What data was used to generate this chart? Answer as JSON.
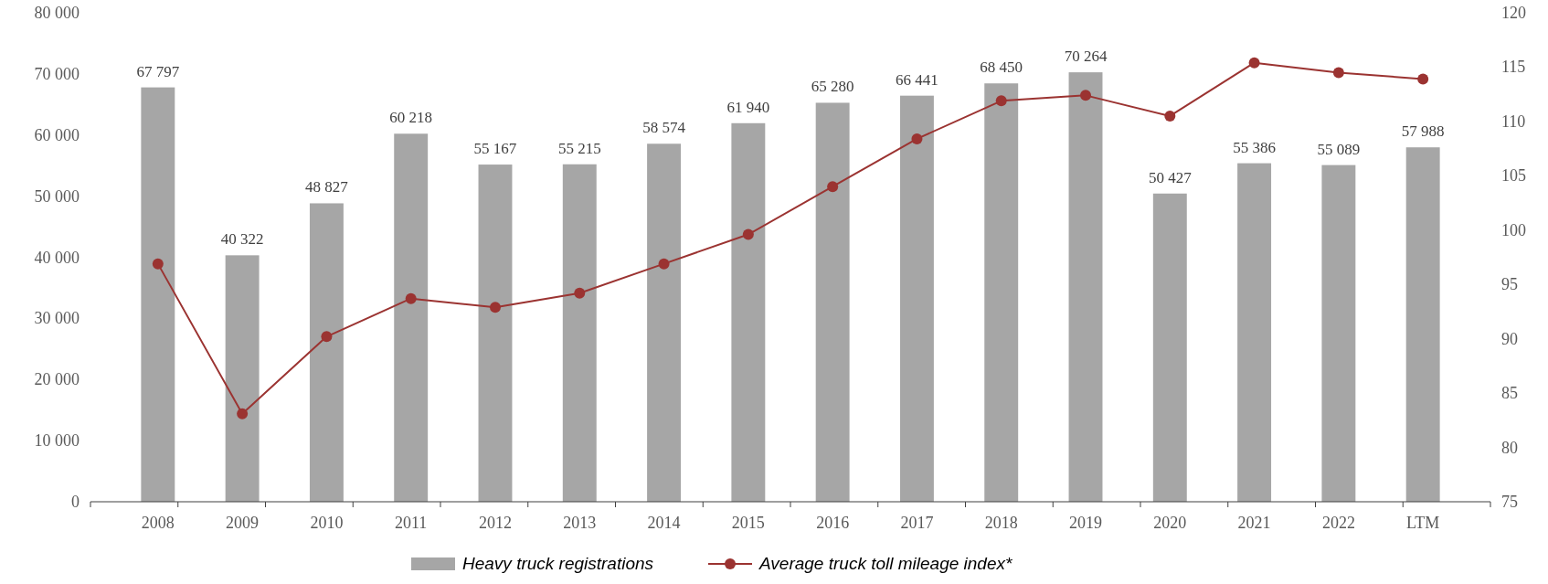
{
  "chart_data": {
    "type": "bar",
    "categories": [
      "2008",
      "2009",
      "2010",
      "2011",
      "2012",
      "2013",
      "2014",
      "2015",
      "2016",
      "2017",
      "2018",
      "2019",
      "2020",
      "2021",
      "2022",
      "LTM"
    ],
    "series": [
      {
        "name": "Heavy truck registrations",
        "color": "#a6a6a6",
        "values": [
          67797,
          40322,
          48827,
          60218,
          55167,
          55215,
          58574,
          61940,
          65280,
          66441,
          68450,
          70264,
          50427,
          55386,
          55089,
          57988
        ],
        "value_labels": [
          "67 797",
          "40 322",
          "48 827",
          "60 218",
          "55 167",
          "55 215",
          "58 574",
          "61 940",
          "65 280",
          "66 441",
          "68 450",
          "70 264",
          "50 427",
          "55 386",
          "55 089",
          "57 988"
        ]
      },
      {
        "name": "Average truck toll mileage index*",
        "type": "line",
        "axis": "y2",
        "color": "#9b3331",
        "values": [
          96.9,
          83.1,
          90.2,
          93.7,
          92.9,
          94.2,
          96.9,
          99.6,
          104.0,
          108.4,
          111.9,
          112.4,
          110.5,
          115.4,
          114.5,
          113.9
        ]
      }
    ],
    "ylim": [
      0,
      80000
    ],
    "yticks": [
      {
        "value": 0,
        "label": "0"
      },
      {
        "value": 10000,
        "label": "10 000"
      },
      {
        "value": 20000,
        "label": "20 000"
      },
      {
        "value": 30000,
        "label": "30 000"
      },
      {
        "value": 40000,
        "label": "40 000"
      },
      {
        "value": 50000,
        "label": "50 000"
      },
      {
        "value": 60000,
        "label": "60 000"
      },
      {
        "value": 70000,
        "label": "70 000"
      },
      {
        "value": 80000,
        "label": "80 000"
      }
    ],
    "y2lim": [
      75,
      120
    ],
    "y2ticks": [
      75,
      80,
      85,
      90,
      95,
      100,
      105,
      110,
      115,
      120
    ],
    "marker": "circle",
    "line_style": "solid",
    "legend": "bottom",
    "grid": false
  }
}
